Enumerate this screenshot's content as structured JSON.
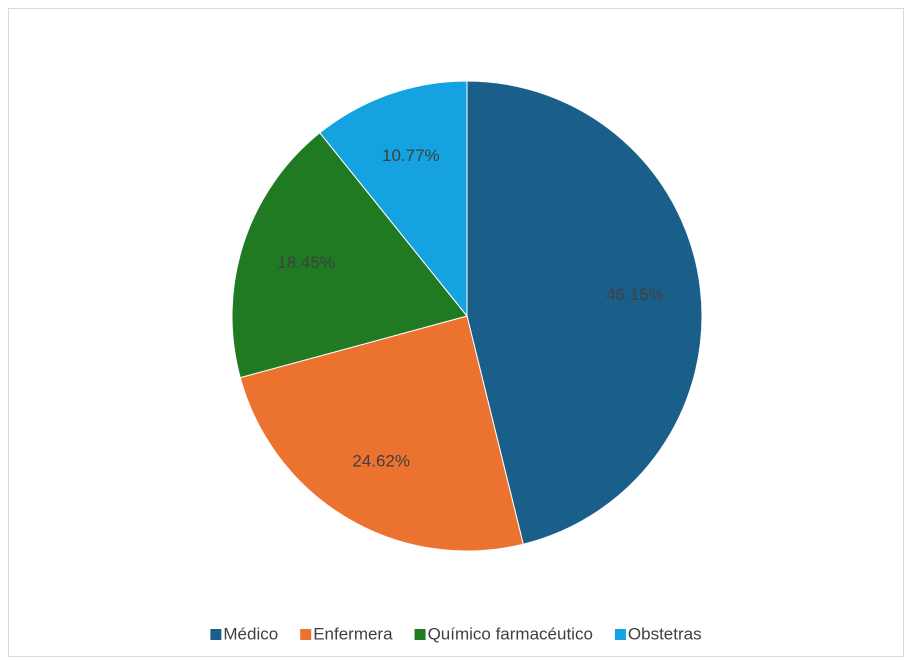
{
  "chart_data": {
    "type": "pie",
    "categories": [
      "Médico",
      "Enfermera",
      "Químico farmacéutico",
      "Obstetras"
    ],
    "values": [
      46.15,
      24.62,
      18.45,
      10.77
    ],
    "value_labels": [
      "46.15%",
      "24.62%",
      "18.45%",
      "10.77%"
    ],
    "colors": [
      "#1a5f8a",
      "#ec7230",
      "#1f7a22",
      "#14a3e0"
    ],
    "legend": "bottom"
  }
}
